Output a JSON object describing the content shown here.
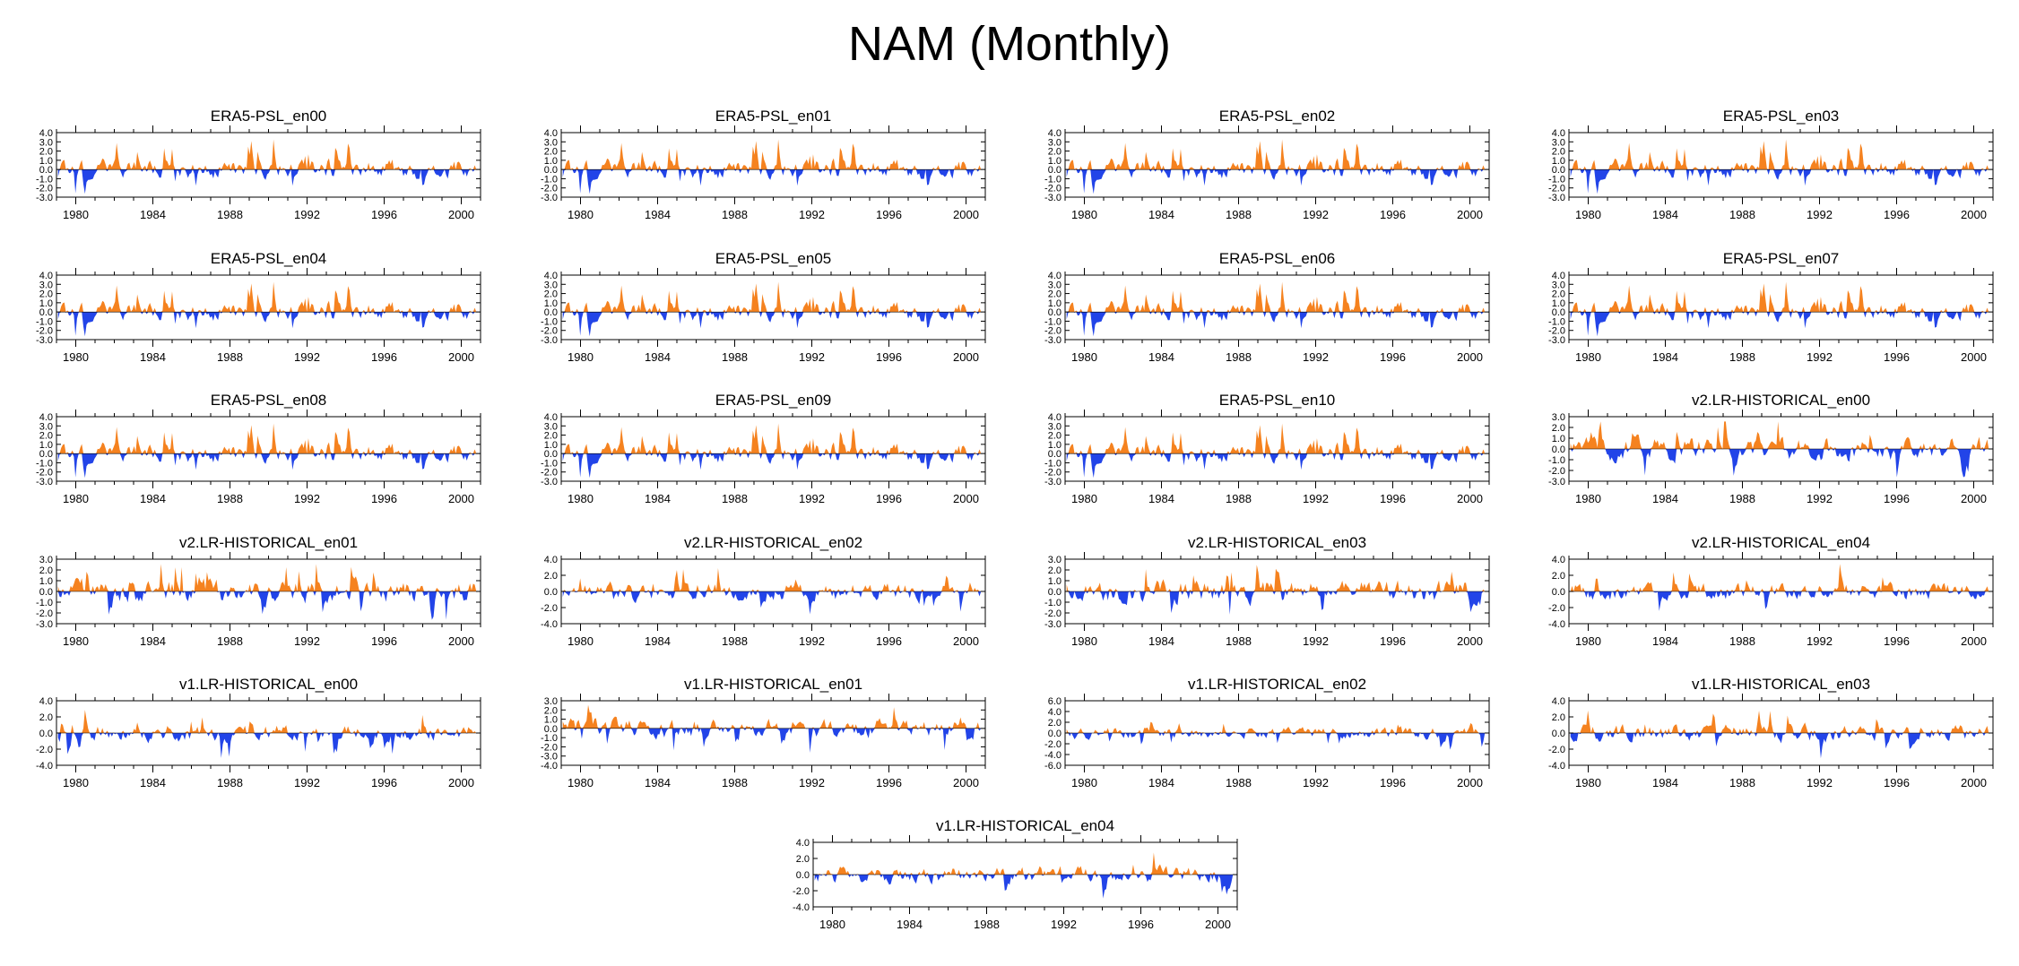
{
  "title": "NAM (Monthly)",
  "colors": {
    "positive": "#f5821f",
    "negative": "#2244e8",
    "axis": "#000000"
  },
  "chart_data": [
    {
      "type": "area",
      "title": "ERA5-PSL_en00",
      "x_range": [
        1979,
        2001
      ],
      "x_ticks": [
        1980,
        1984,
        1988,
        1992,
        1996,
        2000
      ],
      "ylim": [
        -3,
        4
      ],
      "y_ticks": [
        -3,
        -2,
        -1,
        0,
        1,
        2,
        3,
        4
      ],
      "y_tick_labels": [
        "-3.0",
        "-2.0",
        "-1.0",
        "0.0",
        "1.0",
        "2.0",
        "3.0",
        "4.0"
      ],
      "seed": 11,
      "profile": "era5"
    },
    {
      "type": "area",
      "title": "ERA5-PSL_en01",
      "x_range": [
        1979,
        2001
      ],
      "x_ticks": [
        1980,
        1984,
        1988,
        1992,
        1996,
        2000
      ],
      "ylim": [
        -3,
        4
      ],
      "y_ticks": [
        -3,
        -2,
        -1,
        0,
        1,
        2,
        3,
        4
      ],
      "y_tick_labels": [
        "-3.0",
        "-2.0",
        "-1.0",
        "0.0",
        "1.0",
        "2.0",
        "3.0",
        "4.0"
      ],
      "seed": 11,
      "profile": "era5"
    },
    {
      "type": "area",
      "title": "ERA5-PSL_en02",
      "x_range": [
        1979,
        2001
      ],
      "x_ticks": [
        1980,
        1984,
        1988,
        1992,
        1996,
        2000
      ],
      "ylim": [
        -3,
        4
      ],
      "y_ticks": [
        -3,
        -2,
        -1,
        0,
        1,
        2,
        3,
        4
      ],
      "y_tick_labels": [
        "-3.0",
        "-2.0",
        "-1.0",
        "0.0",
        "1.0",
        "2.0",
        "3.0",
        "4.0"
      ],
      "seed": 11,
      "profile": "era5"
    },
    {
      "type": "area",
      "title": "ERA5-PSL_en03",
      "x_range": [
        1979,
        2001
      ],
      "x_ticks": [
        1980,
        1984,
        1988,
        1992,
        1996,
        2000
      ],
      "ylim": [
        -3,
        4
      ],
      "y_ticks": [
        -3,
        -2,
        -1,
        0,
        1,
        2,
        3,
        4
      ],
      "y_tick_labels": [
        "-3.0",
        "-2.0",
        "-1.0",
        "0.0",
        "1.0",
        "2.0",
        "3.0",
        "4.0"
      ],
      "seed": 11,
      "profile": "era5"
    },
    {
      "type": "area",
      "title": "ERA5-PSL_en04",
      "x_range": [
        1979,
        2001
      ],
      "x_ticks": [
        1980,
        1984,
        1988,
        1992,
        1996,
        2000
      ],
      "ylim": [
        -3,
        4
      ],
      "y_ticks": [
        -3,
        -2,
        -1,
        0,
        1,
        2,
        3,
        4
      ],
      "y_tick_labels": [
        "-3.0",
        "-2.0",
        "-1.0",
        "0.0",
        "1.0",
        "2.0",
        "3.0",
        "4.0"
      ],
      "seed": 11,
      "profile": "era5"
    },
    {
      "type": "area",
      "title": "ERA5-PSL_en05",
      "x_range": [
        1979,
        2001
      ],
      "x_ticks": [
        1980,
        1984,
        1988,
        1992,
        1996,
        2000
      ],
      "ylim": [
        -3,
        4
      ],
      "y_ticks": [
        -3,
        -2,
        -1,
        0,
        1,
        2,
        3,
        4
      ],
      "y_tick_labels": [
        "-3.0",
        "-2.0",
        "-1.0",
        "0.0",
        "1.0",
        "2.0",
        "3.0",
        "4.0"
      ],
      "seed": 11,
      "profile": "era5"
    },
    {
      "type": "area",
      "title": "ERA5-PSL_en06",
      "x_range": [
        1979,
        2001
      ],
      "x_ticks": [
        1980,
        1984,
        1988,
        1992,
        1996,
        2000
      ],
      "ylim": [
        -3,
        4
      ],
      "y_ticks": [
        -3,
        -2,
        -1,
        0,
        1,
        2,
        3,
        4
      ],
      "y_tick_labels": [
        "-3.0",
        "-2.0",
        "-1.0",
        "0.0",
        "1.0",
        "2.0",
        "3.0",
        "4.0"
      ],
      "seed": 11,
      "profile": "era5"
    },
    {
      "type": "area",
      "title": "ERA5-PSL_en07",
      "x_range": [
        1979,
        2001
      ],
      "x_ticks": [
        1980,
        1984,
        1988,
        1992,
        1996,
        2000
      ],
      "ylim": [
        -3,
        4
      ],
      "y_ticks": [
        -3,
        -2,
        -1,
        0,
        1,
        2,
        3,
        4
      ],
      "y_tick_labels": [
        "-3.0",
        "-2.0",
        "-1.0",
        "0.0",
        "1.0",
        "2.0",
        "3.0",
        "4.0"
      ],
      "seed": 11,
      "profile": "era5"
    },
    {
      "type": "area",
      "title": "ERA5-PSL_en08",
      "x_range": [
        1979,
        2001
      ],
      "x_ticks": [
        1980,
        1984,
        1988,
        1992,
        1996,
        2000
      ],
      "ylim": [
        -3,
        4
      ],
      "y_ticks": [
        -3,
        -2,
        -1,
        0,
        1,
        2,
        3,
        4
      ],
      "y_tick_labels": [
        "-3.0",
        "-2.0",
        "-1.0",
        "0.0",
        "1.0",
        "2.0",
        "3.0",
        "4.0"
      ],
      "seed": 11,
      "profile": "era5"
    },
    {
      "type": "area",
      "title": "ERA5-PSL_en09",
      "x_range": [
        1979,
        2001
      ],
      "x_ticks": [
        1980,
        1984,
        1988,
        1992,
        1996,
        2000
      ],
      "ylim": [
        -3,
        4
      ],
      "y_ticks": [
        -3,
        -2,
        -1,
        0,
        1,
        2,
        3,
        4
      ],
      "y_tick_labels": [
        "-3.0",
        "-2.0",
        "-1.0",
        "0.0",
        "1.0",
        "2.0",
        "3.0",
        "4.0"
      ],
      "seed": 11,
      "profile": "era5"
    },
    {
      "type": "area",
      "title": "ERA5-PSL_en10",
      "x_range": [
        1979,
        2001
      ],
      "x_ticks": [
        1980,
        1984,
        1988,
        1992,
        1996,
        2000
      ],
      "ylim": [
        -3,
        4
      ],
      "y_ticks": [
        -3,
        -2,
        -1,
        0,
        1,
        2,
        3,
        4
      ],
      "y_tick_labels": [
        "-3.0",
        "-2.0",
        "-1.0",
        "0.0",
        "1.0",
        "2.0",
        "3.0",
        "4.0"
      ],
      "seed": 11,
      "profile": "era5"
    },
    {
      "type": "area",
      "title": "v2.LR-HISTORICAL_en00",
      "x_range": [
        1979,
        2001
      ],
      "x_ticks": [
        1980,
        1984,
        1988,
        1992,
        1996,
        2000
      ],
      "ylim": [
        -3,
        3
      ],
      "y_ticks": [
        -3,
        -2,
        -1,
        0,
        1,
        2,
        3
      ],
      "y_tick_labels": [
        "-3.0",
        "-2.0",
        "-1.0",
        "0.0",
        "1.0",
        "2.0",
        "3.0"
      ],
      "seed": 23,
      "profile": "model"
    },
    {
      "type": "area",
      "title": "v2.LR-HISTORICAL_en01",
      "x_range": [
        1979,
        2001
      ],
      "x_ticks": [
        1980,
        1984,
        1988,
        1992,
        1996,
        2000
      ],
      "ylim": [
        -3,
        3
      ],
      "y_ticks": [
        -3,
        -2,
        -1,
        0,
        1,
        2,
        3
      ],
      "y_tick_labels": [
        "-3.0",
        "-2.0",
        "-1.0",
        "0.0",
        "1.0",
        "2.0",
        "3.0"
      ],
      "seed": 37,
      "profile": "model"
    },
    {
      "type": "area",
      "title": "v2.LR-HISTORICAL_en02",
      "x_range": [
        1979,
        2001
      ],
      "x_ticks": [
        1980,
        1984,
        1988,
        1992,
        1996,
        2000
      ],
      "ylim": [
        -4,
        4
      ],
      "y_ticks": [
        -4,
        -2,
        0,
        2,
        4
      ],
      "y_tick_labels": [
        "-4.0",
        "-2.0",
        "0.0",
        "2.0",
        "4.0"
      ],
      "seed": 41,
      "profile": "model"
    },
    {
      "type": "area",
      "title": "v2.LR-HISTORICAL_en03",
      "x_range": [
        1979,
        2001
      ],
      "x_ticks": [
        1980,
        1984,
        1988,
        1992,
        1996,
        2000
      ],
      "ylim": [
        -3,
        3
      ],
      "y_ticks": [
        -3,
        -2,
        -1,
        0,
        1,
        2,
        3
      ],
      "y_tick_labels": [
        "-3.0",
        "-2.0",
        "-1.0",
        "0.0",
        "1.0",
        "2.0",
        "3.0"
      ],
      "seed": 53,
      "profile": "model"
    },
    {
      "type": "area",
      "title": "v2.LR-HISTORICAL_en04",
      "x_range": [
        1979,
        2001
      ],
      "x_ticks": [
        1980,
        1984,
        1988,
        1992,
        1996,
        2000
      ],
      "ylim": [
        -4,
        4
      ],
      "y_ticks": [
        -4,
        -2,
        0,
        2,
        4
      ],
      "y_tick_labels": [
        "-4.0",
        "-2.0",
        "0.0",
        "2.0",
        "4.0"
      ],
      "seed": 61,
      "profile": "model"
    },
    {
      "type": "area",
      "title": "v1.LR-HISTORICAL_en00",
      "x_range": [
        1979,
        2001
      ],
      "x_ticks": [
        1980,
        1984,
        1988,
        1992,
        1996,
        2000
      ],
      "ylim": [
        -4,
        4
      ],
      "y_ticks": [
        -4,
        -2,
        0,
        2,
        4
      ],
      "y_tick_labels": [
        "-4.0",
        "-2.0",
        "0.0",
        "2.0",
        "4.0"
      ],
      "seed": 71,
      "profile": "model"
    },
    {
      "type": "area",
      "title": "v1.LR-HISTORICAL_en01",
      "x_range": [
        1979,
        2001
      ],
      "x_ticks": [
        1980,
        1984,
        1988,
        1992,
        1996,
        2000
      ],
      "ylim": [
        -4,
        3
      ],
      "y_ticks": [
        -4,
        -3,
        -2,
        -1,
        0,
        1,
        2,
        3
      ],
      "y_tick_labels": [
        "-4.0",
        "-3.0",
        "-2.0",
        "-1.0",
        "0.0",
        "1.0",
        "2.0",
        "3.0"
      ],
      "seed": 83,
      "profile": "model"
    },
    {
      "type": "area",
      "title": "v1.LR-HISTORICAL_en02",
      "x_range": [
        1979,
        2001
      ],
      "x_ticks": [
        1980,
        1984,
        1988,
        1992,
        1996,
        2000
      ],
      "ylim": [
        -6,
        6
      ],
      "y_ticks": [
        -6,
        -4,
        -2,
        0,
        2,
        4,
        6
      ],
      "y_tick_labels": [
        "-6.0",
        "-4.0",
        "-2.0",
        "0.0",
        "2.0",
        "4.0",
        "6.0"
      ],
      "seed": 97,
      "profile": "model"
    },
    {
      "type": "area",
      "title": "v1.LR-HISTORICAL_en03",
      "x_range": [
        1979,
        2001
      ],
      "x_ticks": [
        1980,
        1984,
        1988,
        1992,
        1996,
        2000
      ],
      "ylim": [
        -4,
        4
      ],
      "y_ticks": [
        -4,
        -2,
        0,
        2,
        4
      ],
      "y_tick_labels": [
        "-4.0",
        "-2.0",
        "0.0",
        "2.0",
        "4.0"
      ],
      "seed": 101,
      "profile": "model"
    },
    {
      "type": "area",
      "title": "v1.LR-HISTORICAL_en04",
      "x_range": [
        1979,
        2001
      ],
      "x_ticks": [
        1980,
        1984,
        1988,
        1992,
        1996,
        2000
      ],
      "ylim": [
        -4,
        4
      ],
      "y_ticks": [
        -4,
        -2,
        0,
        2,
        4
      ],
      "y_tick_labels": [
        "-4.0",
        "-2.0",
        "0.0",
        "2.0",
        "4.0"
      ],
      "seed": 113,
      "profile": "model"
    }
  ]
}
